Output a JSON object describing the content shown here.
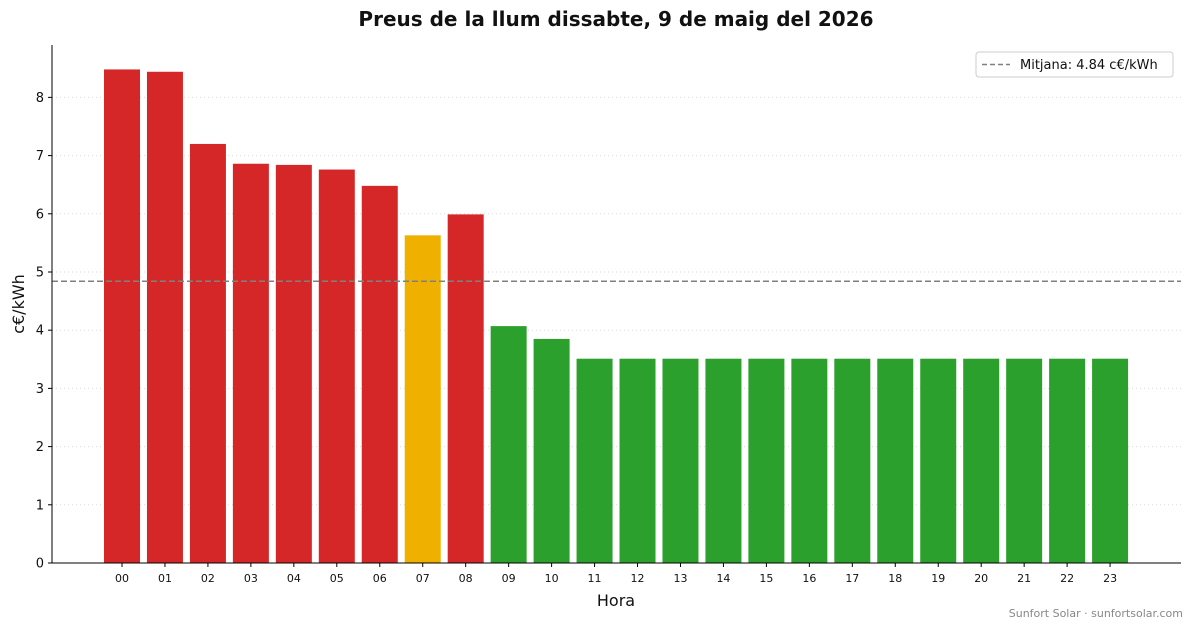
{
  "chart_data": {
    "type": "bar",
    "title": "Preus de la llum dissabte, 9 de maig del 2026",
    "xlabel": "Hora",
    "ylabel": "c€/kWh",
    "ylim": [
      0,
      8.9
    ],
    "yticks": [
      "0",
      "1",
      "2",
      "3",
      "4",
      "5",
      "6",
      "7",
      "8"
    ],
    "grid": "horizontal dotted",
    "categories": [
      "00",
      "01",
      "02",
      "03",
      "04",
      "05",
      "06",
      "07",
      "08",
      "09",
      "10",
      "11",
      "12",
      "13",
      "14",
      "15",
      "16",
      "17",
      "18",
      "19",
      "20",
      "21",
      "22",
      "23"
    ],
    "values": [
      8.48,
      8.44,
      7.2,
      6.86,
      6.84,
      6.76,
      6.48,
      5.63,
      5.99,
      4.07,
      3.85,
      3.51,
      3.51,
      3.51,
      3.51,
      3.51,
      3.51,
      3.51,
      3.51,
      3.51,
      3.51,
      3.51,
      3.51,
      3.51
    ],
    "colors": [
      "#d62728",
      "#d62728",
      "#d62728",
      "#d62728",
      "#d62728",
      "#d62728",
      "#d62728",
      "#f0b000",
      "#d62728",
      "#2ca02c",
      "#2ca02c",
      "#2ca02c",
      "#2ca02c",
      "#2ca02c",
      "#2ca02c",
      "#2ca02c",
      "#2ca02c",
      "#2ca02c",
      "#2ca02c",
      "#2ca02c",
      "#2ca02c",
      "#2ca02c",
      "#2ca02c",
      "#2ca02c"
    ],
    "mean": 4.84,
    "mean_color": "#808080",
    "legend": {
      "label": "Mitjana: 4.84 c€/kWh",
      "placement": "top-right"
    }
  },
  "footer": "Sunfort Solar · sunfortsolar.com"
}
